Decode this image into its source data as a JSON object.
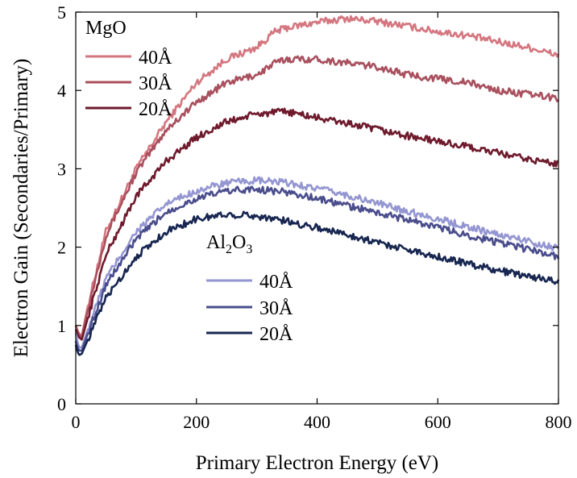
{
  "chart_data": {
    "type": "line",
    "xlabel": "Primary Electron Energy (eV)",
    "ylabel": "Electron Gain (Secondaries/Primary)",
    "xlim": [
      0,
      800
    ],
    "ylim": [
      0,
      5
    ],
    "xticks": [
      0,
      200,
      400,
      600,
      800
    ],
    "yticks": [
      0,
      1,
      2,
      3,
      4,
      5
    ],
    "grid": false,
    "legend_groups": [
      {
        "title_parts": [
          {
            "text": "MgO",
            "sub": false
          }
        ],
        "placement": "top-left",
        "entries": [
          {
            "label": "40Å",
            "series_index": 0
          },
          {
            "label": "30Å",
            "series_index": 1
          },
          {
            "label": "20Å",
            "series_index": 2
          }
        ]
      },
      {
        "title_parts": [
          {
            "text": "Al",
            "sub": false
          },
          {
            "text": "2",
            "sub": true
          },
          {
            "text": "O",
            "sub": false
          },
          {
            "text": "3",
            "sub": true
          }
        ],
        "placement": "center-left",
        "entries": [
          {
            "label": "40Å",
            "series_index": 3
          },
          {
            "label": "30Å",
            "series_index": 4
          },
          {
            "label": "20Å",
            "series_index": 5
          }
        ]
      }
    ],
    "series": [
      {
        "name": "MgO 40Å",
        "color": "#d4767f",
        "x": [
          0,
          5,
          10,
          20,
          50,
          100,
          150,
          200,
          250,
          300,
          330,
          350,
          400,
          450,
          500,
          550,
          600,
          650,
          700,
          750,
          800
        ],
        "y": [
          1.0,
          0.9,
          0.87,
          1.25,
          2.2,
          3.0,
          3.6,
          4.1,
          4.4,
          4.55,
          4.75,
          4.8,
          4.87,
          4.92,
          4.88,
          4.82,
          4.75,
          4.7,
          4.62,
          4.55,
          4.45
        ]
      },
      {
        "name": "MgO 30Å",
        "color": "#a9505e",
        "x": [
          0,
          5,
          10,
          20,
          50,
          100,
          150,
          200,
          250,
          300,
          330,
          350,
          400,
          450,
          500,
          550,
          600,
          650,
          700,
          750,
          800
        ],
        "y": [
          1.0,
          0.88,
          0.85,
          1.2,
          2.15,
          2.95,
          3.5,
          3.85,
          4.1,
          4.2,
          4.35,
          4.4,
          4.4,
          4.35,
          4.3,
          4.2,
          4.15,
          4.1,
          4.0,
          3.95,
          3.9
        ]
      },
      {
        "name": "MgO 20Å",
        "color": "#6e1a2c",
        "x": [
          0,
          5,
          10,
          20,
          50,
          100,
          150,
          200,
          250,
          300,
          350,
          400,
          450,
          500,
          550,
          600,
          650,
          700,
          750,
          800
        ],
        "y": [
          0.95,
          0.85,
          0.82,
          1.1,
          1.9,
          2.65,
          3.1,
          3.4,
          3.6,
          3.7,
          3.73,
          3.65,
          3.58,
          3.5,
          3.42,
          3.35,
          3.28,
          3.2,
          3.12,
          3.06
        ]
      },
      {
        "name": "Al2O3 40Å",
        "color": "#9496d2",
        "x": [
          0,
          5,
          10,
          20,
          50,
          100,
          150,
          200,
          250,
          300,
          350,
          400,
          450,
          500,
          550,
          600,
          650,
          700,
          750,
          800
        ],
        "y": [
          0.9,
          0.72,
          0.72,
          0.95,
          1.6,
          2.2,
          2.55,
          2.72,
          2.82,
          2.85,
          2.82,
          2.75,
          2.66,
          2.56,
          2.46,
          2.36,
          2.26,
          2.16,
          2.08,
          1.98
        ]
      },
      {
        "name": "Al2O3 30Å",
        "color": "#4a4d8c",
        "x": [
          0,
          5,
          10,
          20,
          50,
          100,
          150,
          200,
          250,
          300,
          350,
          400,
          450,
          500,
          550,
          600,
          650,
          700,
          750,
          800
        ],
        "y": [
          0.8,
          0.68,
          0.68,
          0.9,
          1.52,
          2.1,
          2.45,
          2.62,
          2.72,
          2.74,
          2.7,
          2.62,
          2.53,
          2.44,
          2.35,
          2.25,
          2.15,
          2.06,
          1.97,
          1.88
        ]
      },
      {
        "name": "Al2O3 20Å",
        "color": "#172650",
        "x": [
          0,
          5,
          10,
          20,
          50,
          100,
          150,
          200,
          250,
          300,
          350,
          400,
          450,
          500,
          550,
          600,
          650,
          700,
          750,
          800
        ],
        "y": [
          0.75,
          0.62,
          0.64,
          0.82,
          1.35,
          1.88,
          2.2,
          2.36,
          2.42,
          2.4,
          2.33,
          2.25,
          2.16,
          2.06,
          1.97,
          1.88,
          1.79,
          1.7,
          1.63,
          1.56
        ]
      }
    ]
  }
}
